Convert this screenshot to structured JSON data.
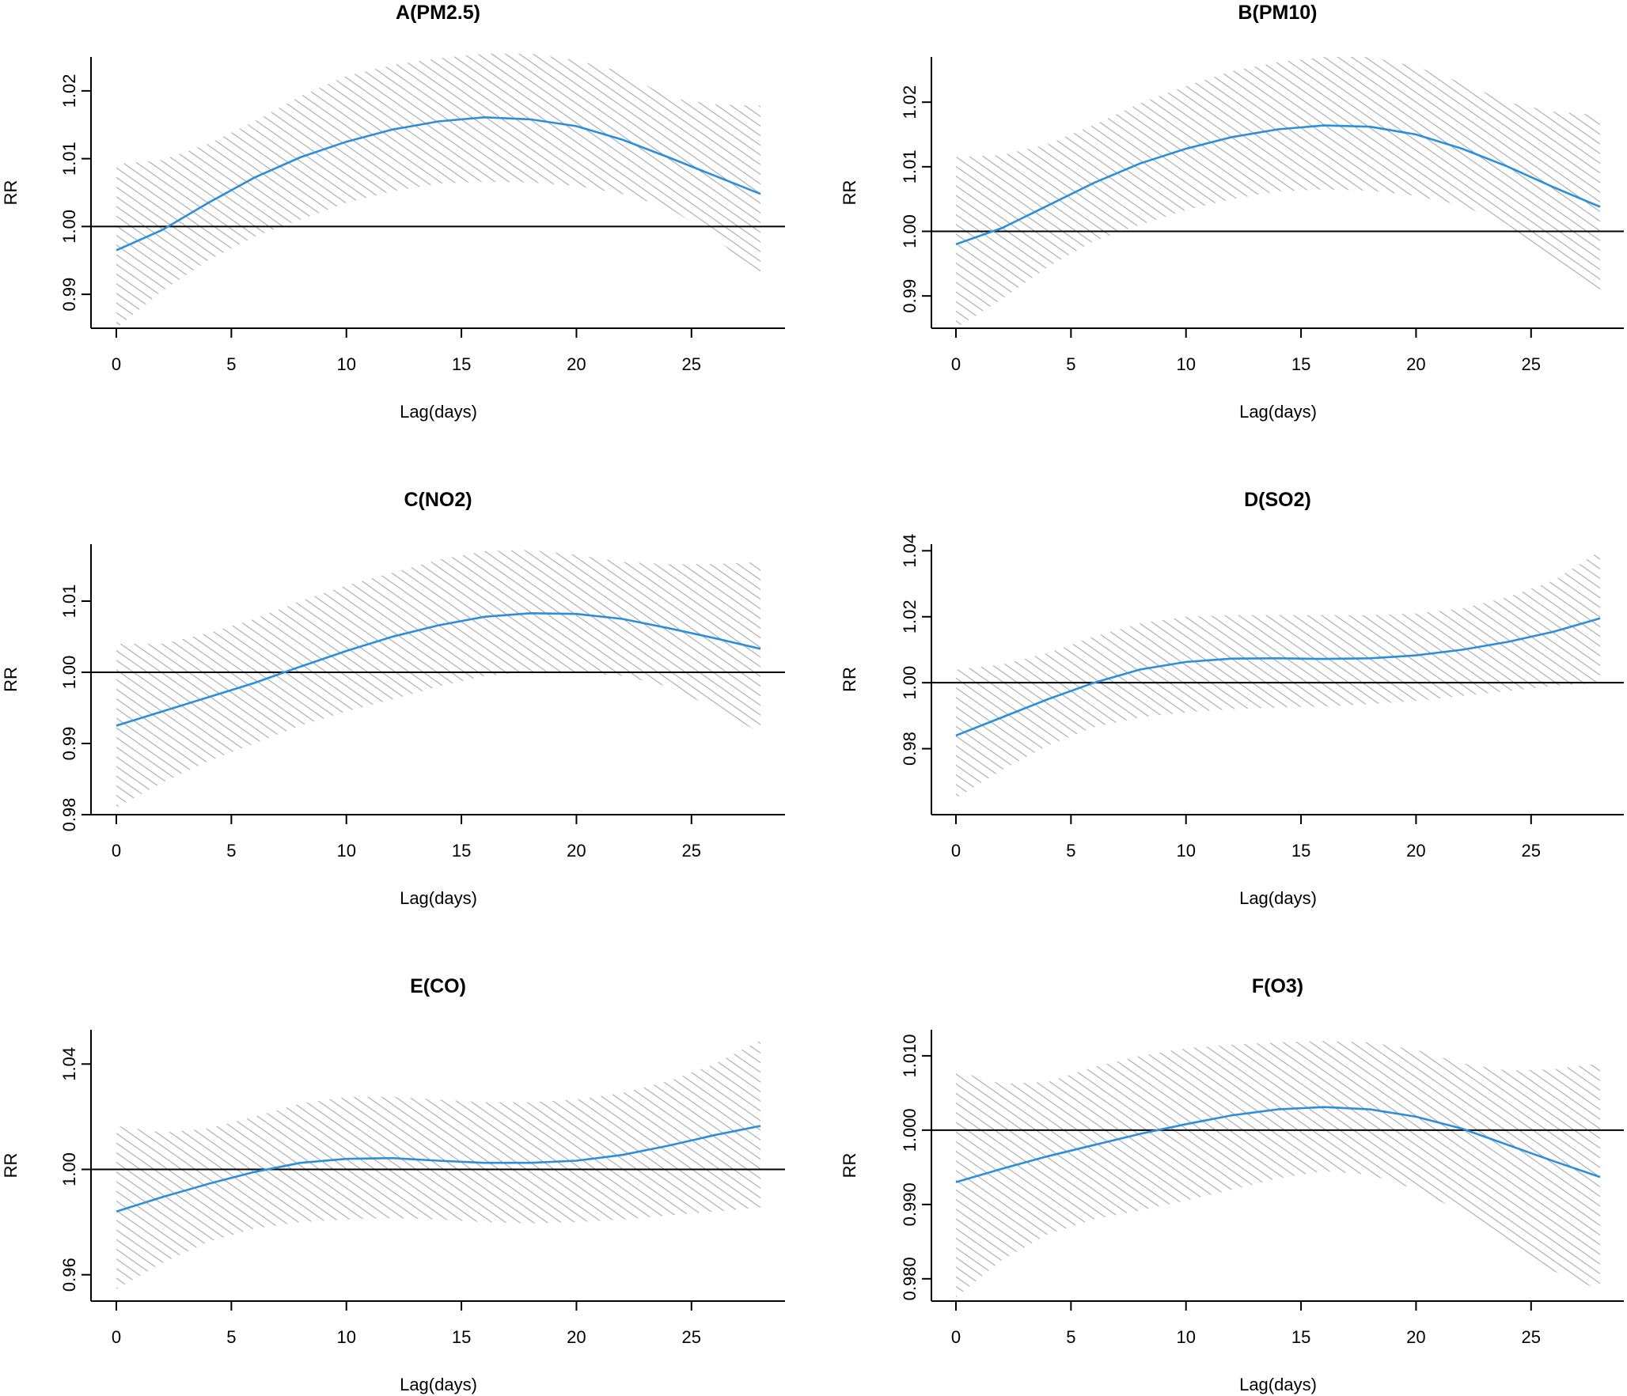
{
  "colors": {
    "line": "#2b8fdc",
    "band_hatch": "#a9a9a9",
    "axis": "#000000",
    "reference": "#000000"
  },
  "chart_data": [
    {
      "type": "line",
      "title": "A(PM2.5)",
      "xlabel": "Lag(days)",
      "ylabel": "RR",
      "xlim": [
        0,
        28
      ],
      "ylim": [
        0.985,
        1.025
      ],
      "x_ticks": [
        0,
        5,
        10,
        15,
        20,
        25
      ],
      "x_tick_labels": [
        "0",
        "5",
        "10",
        "15",
        "20",
        "25"
      ],
      "y_ticks": [
        0.99,
        1.0,
        1.01,
        1.02
      ],
      "y_tick_labels": [
        "0.99",
        "1.00",
        "1.01",
        "1.02"
      ],
      "reference_line": 1.0,
      "x": [
        0,
        2,
        4,
        6,
        8,
        10,
        12,
        14,
        16,
        18,
        20,
        22,
        24,
        26,
        28
      ],
      "series": [
        {
          "name": "RR",
          "values": [
            0.9965,
            0.9995,
            1.0035,
            1.0072,
            1.0102,
            1.0125,
            1.0143,
            1.0155,
            1.0161,
            1.0158,
            1.0148,
            1.0128,
            1.0102,
            1.0075,
            1.0048
          ]
        },
        {
          "name": "lower 95% CI",
          "values": [
            0.985,
            0.9905,
            0.995,
            0.9985,
            1.001,
            1.0035,
            1.0052,
            1.0063,
            1.0066,
            1.0065,
            1.006,
            1.0048,
            1.0028,
            0.9985,
            0.9925
          ]
        },
        {
          "name": "upper 95% CI",
          "values": [
            1.0092,
            1.0098,
            1.0122,
            1.0155,
            1.0192,
            1.0222,
            1.0238,
            1.0248,
            1.0255,
            1.0255,
            1.0245,
            1.0228,
            1.019,
            1.018,
            1.0178
          ]
        }
      ]
    },
    {
      "type": "line",
      "title": "B(PM10)",
      "xlabel": "Lag(days)",
      "ylabel": "RR",
      "xlim": [
        0,
        28
      ],
      "ylim": [
        0.985,
        1.027
      ],
      "x_ticks": [
        0,
        5,
        10,
        15,
        20,
        25
      ],
      "x_tick_labels": [
        "0",
        "5",
        "10",
        "15",
        "20",
        "25"
      ],
      "y_ticks": [
        0.99,
        1.0,
        1.01,
        1.02
      ],
      "y_tick_labels": [
        "0.99",
        "1.00",
        "1.01",
        "1.02"
      ],
      "reference_line": 1.0,
      "x": [
        0,
        2,
        4,
        6,
        8,
        10,
        12,
        14,
        16,
        18,
        20,
        22,
        24,
        26,
        28
      ],
      "series": [
        {
          "name": "RR",
          "values": [
            0.998,
            1.0005,
            1.004,
            1.0075,
            1.0105,
            1.0128,
            1.0146,
            1.0158,
            1.0164,
            1.0162,
            1.015,
            1.0128,
            1.01,
            1.0068,
            1.0038
          ]
        },
        {
          "name": "lower 95% CI",
          "values": [
            0.985,
            0.9895,
            0.9945,
            0.9985,
            1.001,
            1.0033,
            1.005,
            1.0062,
            1.0065,
            1.0063,
            1.0055,
            1.004,
            1.001,
            0.9955,
            0.99
          ]
        },
        {
          "name": "upper 95% CI",
          "values": [
            1.0115,
            1.0118,
            1.0135,
            1.0165,
            1.0198,
            1.0225,
            1.0248,
            1.0262,
            1.027,
            1.027,
            1.0255,
            1.023,
            1.02,
            1.0185,
            1.018
          ]
        }
      ]
    },
    {
      "type": "line",
      "title": "C(NO2)",
      "xlabel": "Lag(days)",
      "ylabel": "RR",
      "xlim": [
        0,
        28
      ],
      "ylim": [
        0.98,
        1.018
      ],
      "x_ticks": [
        0,
        5,
        10,
        15,
        20,
        25
      ],
      "x_tick_labels": [
        "0",
        "5",
        "10",
        "15",
        "20",
        "25"
      ],
      "y_ticks": [
        0.98,
        0.99,
        1.0,
        1.01
      ],
      "y_tick_labels": [
        "0.98",
        "0.99",
        "1.00",
        "1.01"
      ],
      "reference_line": 1.0,
      "x": [
        0,
        2,
        4,
        6,
        8,
        10,
        12,
        14,
        16,
        18,
        20,
        22,
        24,
        26,
        28
      ],
      "series": [
        {
          "name": "RR",
          "values": [
            0.9925,
            0.9945,
            0.9965,
            0.9985,
            1.0008,
            1.003,
            1.005,
            1.0066,
            1.0078,
            1.0083,
            1.0082,
            1.0075,
            1.0062,
            1.0048,
            1.0033
          ]
        },
        {
          "name": "lower 95% CI",
          "values": [
            0.981,
            0.9845,
            0.9875,
            0.99,
            0.9925,
            0.9945,
            0.9962,
            0.998,
            0.9995,
            1.0,
            1.0,
            0.9995,
            0.998,
            0.995,
            0.9915
          ]
        },
        {
          "name": "upper 95% CI",
          "values": [
            1.004,
            1.004,
            1.0055,
            1.0075,
            1.01,
            1.0122,
            1.014,
            1.0158,
            1.017,
            1.0172,
            1.0165,
            1.0155,
            1.0152,
            1.0152,
            1.0155
          ]
        }
      ]
    },
    {
      "type": "line",
      "title": "D(SO2)",
      "xlabel": "Lag(days)",
      "ylabel": "RR",
      "xlim": [
        0,
        28
      ],
      "ylim": [
        0.96,
        1.042
      ],
      "x_ticks": [
        0,
        5,
        10,
        15,
        20,
        25
      ],
      "x_tick_labels": [
        "0",
        "5",
        "10",
        "15",
        "20",
        "25"
      ],
      "y_ticks": [
        0.98,
        1.0,
        1.02,
        1.04
      ],
      "y_tick_labels": [
        "0.98",
        "1.00",
        "1.02",
        "1.04"
      ],
      "reference_line": 1.0,
      "x": [
        0,
        2,
        4,
        6,
        8,
        10,
        12,
        14,
        16,
        18,
        20,
        22,
        24,
        26,
        28
      ],
      "series": [
        {
          "name": "RR",
          "values": [
            0.984,
            0.9895,
            0.995,
            1.0,
            1.004,
            1.0063,
            1.0073,
            1.0074,
            1.0072,
            1.0074,
            1.0083,
            1.01,
            1.0124,
            1.0155,
            1.0195
          ]
        },
        {
          "name": "lower 95% CI",
          "values": [
            0.965,
            0.9735,
            0.981,
            0.9865,
            0.9895,
            0.991,
            0.992,
            0.9925,
            0.9928,
            0.9935,
            0.9945,
            0.996,
            0.9975,
            0.999,
            1.0
          ]
        },
        {
          "name": "upper 95% CI",
          "values": [
            1.004,
            1.0055,
            1.009,
            1.014,
            1.018,
            1.02,
            1.0205,
            1.0205,
            1.0205,
            1.0205,
            1.021,
            1.0225,
            1.026,
            1.031,
            1.04
          ]
        }
      ]
    },
    {
      "type": "line",
      "title": "E(CO)",
      "xlabel": "Lag(days)",
      "ylabel": "RR",
      "xlim": [
        0,
        28
      ],
      "ylim": [
        0.95,
        1.053
      ],
      "x_ticks": [
        0,
        5,
        10,
        15,
        20,
        25
      ],
      "x_tick_labels": [
        "0",
        "5",
        "10",
        "15",
        "20",
        "25"
      ],
      "y_ticks": [
        0.96,
        1.0,
        1.04
      ],
      "y_tick_labels": [
        "0.96",
        "1.00",
        "1.04"
      ],
      "reference_line": 1.0,
      "x": [
        0,
        2,
        4,
        6,
        8,
        10,
        12,
        14,
        16,
        18,
        20,
        22,
        24,
        26,
        28
      ],
      "series": [
        {
          "name": "RR",
          "values": [
            0.984,
            0.9895,
            0.9945,
            0.999,
            1.0025,
            1.004,
            1.0043,
            1.0033,
            1.0025,
            1.0025,
            1.0033,
            1.0055,
            1.009,
            1.013,
            1.0165
          ]
        },
        {
          "name": "lower 95% CI",
          "values": [
            0.9545,
            0.9645,
            0.9725,
            0.9775,
            0.98,
            0.981,
            0.9815,
            0.981,
            0.98,
            0.9795,
            0.98,
            0.981,
            0.9825,
            0.984,
            0.9855
          ]
        },
        {
          "name": "upper 95% CI",
          "values": [
            1.0165,
            1.014,
            1.0155,
            1.02,
            1.025,
            1.0275,
            1.0275,
            1.0265,
            1.0255,
            1.0255,
            1.0265,
            1.029,
            1.0335,
            1.04,
            1.049
          ]
        }
      ]
    },
    {
      "type": "line",
      "title": "F(O3)",
      "xlabel": "Lag(days)",
      "ylabel": "RR",
      "xlim": [
        0,
        28
      ],
      "ylim": [
        0.977,
        1.0135
      ],
      "x_ticks": [
        0,
        5,
        10,
        15,
        20,
        25
      ],
      "x_tick_labels": [
        "0",
        "5",
        "10",
        "15",
        "20",
        "25"
      ],
      "y_ticks": [
        0.98,
        0.99,
        1.0,
        1.01
      ],
      "y_tick_labels": [
        "0.980",
        "0.990",
        "1.000",
        "1.010"
      ],
      "reference_line": 1.0,
      "x": [
        0,
        2,
        4,
        6,
        8,
        10,
        12,
        14,
        16,
        18,
        20,
        22,
        24,
        26,
        28
      ],
      "series": [
        {
          "name": "RR",
          "values": [
            0.993,
            0.9948,
            0.9965,
            0.998,
            0.9995,
            1.0008,
            1.002,
            1.0028,
            1.0031,
            1.0028,
            1.0018,
            1.0002,
            0.998,
            0.9958,
            0.9937
          ]
        },
        {
          "name": "lower 95% CI",
          "values": [
            0.9775,
            0.9825,
            0.986,
            0.988,
            0.9892,
            0.9905,
            0.992,
            0.9935,
            0.9945,
            0.994,
            0.992,
            0.989,
            0.985,
            0.981,
            0.9785
          ]
        },
        {
          "name": "upper 95% CI",
          "values": [
            1.008,
            1.0062,
            1.0065,
            1.0085,
            1.01,
            1.011,
            1.0115,
            1.0118,
            1.012,
            1.0118,
            1.0108,
            1.009,
            1.008,
            1.0082,
            1.009
          ]
        }
      ]
    }
  ]
}
